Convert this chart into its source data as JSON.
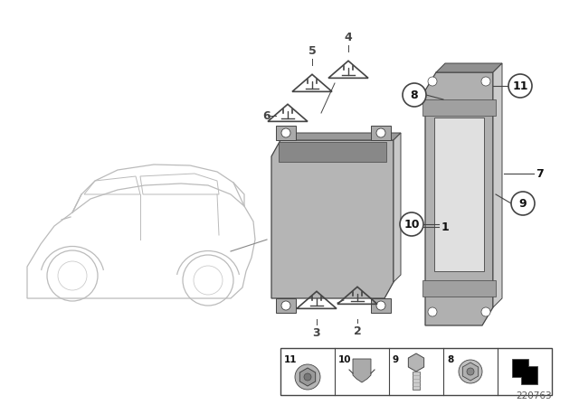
{
  "bg_color": "#ffffff",
  "fig_width": 6.4,
  "fig_height": 4.48,
  "dpi": 100,
  "part_number": "220763",
  "line_color": "#444444",
  "label_color": "#111111",
  "part_gray": "#b8b8b8",
  "part_dark": "#888888",
  "part_light": "#d8d8d8",
  "car_color": "#cccccc"
}
